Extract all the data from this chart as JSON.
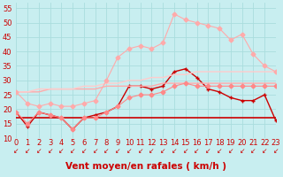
{
  "background_color": "#c8eef0",
  "grid_color": "#aadddd",
  "xlabel": "Vent moyen/en rafales ( km/h )",
  "xlim": [
    0,
    23
  ],
  "ylim": [
    10,
    57
  ],
  "yticks": [
    10,
    15,
    20,
    25,
    30,
    35,
    40,
    45,
    50,
    55
  ],
  "xticks": [
    0,
    1,
    2,
    3,
    4,
    5,
    6,
    7,
    8,
    9,
    10,
    11,
    12,
    13,
    14,
    15,
    16,
    17,
    18,
    19,
    20,
    21,
    22,
    23
  ],
  "series": [
    {
      "x": [
        0,
        1,
        2,
        3,
        4,
        5,
        6,
        7,
        8,
        9,
        10,
        11,
        12,
        13,
        14,
        15,
        16,
        17,
        18,
        19,
        20,
        21,
        22,
        23
      ],
      "y": [
        19,
        14,
        19,
        18,
        17,
        13,
        17,
        18,
        19,
        21,
        28,
        28,
        27,
        28,
        33,
        34,
        31,
        27,
        26,
        24,
        23,
        23,
        25,
        16
      ],
      "color": "#cc0000",
      "marker": "+",
      "linewidth": 1.0,
      "markersize": 3.5
    },
    {
      "x": [
        0,
        1,
        2,
        3,
        4,
        5,
        6,
        7,
        8,
        9,
        10,
        11,
        12,
        13,
        14,
        15,
        16,
        17,
        18,
        19,
        20,
        21,
        22,
        23
      ],
      "y": [
        17,
        17,
        17,
        17,
        17,
        17,
        17,
        17,
        17,
        17,
        17,
        17,
        17,
        17,
        17,
        17,
        17,
        17,
        17,
        17,
        17,
        17,
        17,
        17
      ],
      "color": "#cc0000",
      "marker": null,
      "linewidth": 1.2,
      "markersize": 0
    },
    {
      "x": [
        0,
        1,
        2,
        3,
        4,
        5,
        6,
        7,
        8,
        9,
        10,
        11,
        12,
        13,
        14,
        15,
        16,
        17,
        18,
        19,
        20,
        21,
        22,
        23
      ],
      "y": [
        26,
        26,
        26,
        27,
        27,
        27,
        27,
        27,
        28,
        28,
        28,
        28,
        28,
        29,
        29,
        29,
        29,
        29,
        29,
        29,
        29,
        29,
        29,
        29
      ],
      "color": "#ffaaaa",
      "marker": null,
      "linewidth": 1.0,
      "markersize": 0
    },
    {
      "x": [
        0,
        1,
        2,
        3,
        4,
        5,
        6,
        7,
        8,
        9,
        10,
        11,
        12,
        13,
        14,
        15,
        16,
        17,
        18,
        19,
        20,
        21,
        22,
        23
      ],
      "y": [
        26,
        26,
        27,
        27,
        27,
        27,
        28,
        28,
        29,
        29,
        30,
        30,
        31,
        31,
        32,
        32,
        33,
        33,
        33,
        33,
        33,
        33,
        33,
        33
      ],
      "color": "#ffcccc",
      "marker": null,
      "linewidth": 1.0,
      "markersize": 0
    },
    {
      "x": [
        0,
        1,
        2,
        3,
        4,
        5,
        6,
        7,
        8,
        9,
        10,
        11,
        12,
        13,
        14,
        15,
        16,
        17,
        18,
        19,
        20,
        21,
        22,
        23
      ],
      "y": [
        19,
        15,
        19,
        18,
        17,
        13,
        17,
        17,
        19,
        21,
        24,
        25,
        25,
        26,
        28,
        29,
        28,
        28,
        28,
        28,
        28,
        28,
        28,
        28
      ],
      "color": "#ff8888",
      "marker": "D",
      "linewidth": 0.8,
      "markersize": 2.5
    },
    {
      "x": [
        0,
        1,
        2,
        3,
        4,
        5,
        6,
        7,
        8,
        9,
        10,
        11,
        12,
        13,
        14,
        15,
        16,
        17,
        18,
        19,
        20,
        21,
        22,
        23
      ],
      "y": [
        26,
        22,
        21,
        22,
        21,
        21,
        22,
        23,
        30,
        38,
        41,
        42,
        41,
        43,
        53,
        51,
        50,
        49,
        48,
        44,
        46,
        39,
        35,
        33
      ],
      "color": "#ffaaaa",
      "marker": "D",
      "linewidth": 0.8,
      "markersize": 2.5
    }
  ],
  "arrow_color": "#cc0000",
  "tick_fontsize": 6,
  "xlabel_fontsize": 7.5,
  "xlabel_fontweight": "bold",
  "xlabel_color": "#cc0000"
}
